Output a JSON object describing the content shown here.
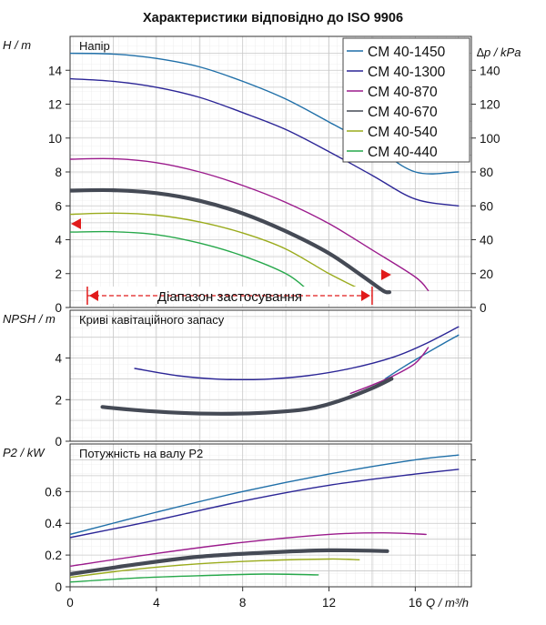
{
  "title": "Характеристики відповідно до ISO 9906",
  "legend_entries": [
    "CM 40-1450",
    "CM 40-1300",
    "CM 40-870",
    "CM 40-670",
    "CM 40-540",
    "CM 40-440"
  ],
  "chart_data": [
    {
      "type": "line",
      "panel_label": "Напір",
      "ylabel": "H / m",
      "y2label": "∆p / kPa",
      "xlim": [
        0,
        18.6
      ],
      "ylim": [
        0,
        16
      ],
      "y2lim": [
        0,
        160
      ],
      "yticks": [
        "0",
        "2",
        "4",
        "6",
        "8",
        "10",
        "12",
        "14"
      ],
      "y2ticks": [
        "0",
        "20",
        "40",
        "60",
        "80",
        "100",
        "120",
        "140"
      ],
      "grid": true,
      "legend_position": "top-right",
      "range_label": "Діапазон застосування",
      "range": [
        0.8,
        14.0
      ],
      "series": [
        {
          "name": "CM 40-1450",
          "color": "#1f6fa8",
          "width": 1.4,
          "points": [
            [
              0,
              15.0
            ],
            [
              2,
              14.96
            ],
            [
              4,
              14.7
            ],
            [
              6,
              14.2
            ],
            [
              8,
              13.35
            ],
            [
              10,
              12.3
            ],
            [
              12,
              10.95
            ],
            [
              14,
              9.55
            ],
            [
              16,
              8.0
            ],
            [
              18,
              8.0
            ]
          ]
        },
        {
          "name": "CM 40-1300",
          "color": "#2b2596",
          "width": 1.4,
          "points": [
            [
              0,
              13.5
            ],
            [
              2,
              13.35
            ],
            [
              4,
              13.0
            ],
            [
              6,
              12.4
            ],
            [
              8,
              11.5
            ],
            [
              10,
              10.5
            ],
            [
              12,
              9.2
            ],
            [
              14,
              7.8
            ],
            [
              16,
              6.4
            ],
            [
              18,
              6.0
            ]
          ]
        },
        {
          "name": "CM 40-870",
          "color": "#9b1b8c",
          "width": 1.4,
          "points": [
            [
              0,
              8.75
            ],
            [
              2,
              8.78
            ],
            [
              4,
              8.55
            ],
            [
              6,
              8.0
            ],
            [
              8,
              7.2
            ],
            [
              10,
              6.2
            ],
            [
              12,
              4.95
            ],
            [
              14,
              3.4
            ],
            [
              16,
              1.8
            ],
            [
              16.6,
              1.0
            ]
          ]
        },
        {
          "name": "CM 40-670",
          "color": "#454a55",
          "width": 4.2,
          "points": [
            [
              0,
              6.9
            ],
            [
              2,
              6.92
            ],
            [
              4,
              6.75
            ],
            [
              6,
              6.3
            ],
            [
              8,
              5.55
            ],
            [
              10,
              4.5
            ],
            [
              12,
              3.2
            ],
            [
              13.5,
              1.9
            ],
            [
              14.5,
              1.0
            ],
            [
              14.8,
              0.9
            ]
          ]
        },
        {
          "name": "CM 40-540",
          "color": "#9aab1c",
          "width": 1.4,
          "points": [
            [
              0,
              5.5
            ],
            [
              2,
              5.57
            ],
            [
              4,
              5.45
            ],
            [
              6,
              5.05
            ],
            [
              8,
              4.4
            ],
            [
              10,
              3.45
            ],
            [
              12,
              2.0
            ],
            [
              13.4,
              1.1
            ]
          ]
        },
        {
          "name": "CM 40-440",
          "color": "#27a84b",
          "width": 1.4,
          "points": [
            [
              0,
              4.45
            ],
            [
              2,
              4.47
            ],
            [
              4,
              4.3
            ],
            [
              6,
              3.8
            ],
            [
              8,
              3.05
            ],
            [
              10,
              2.0
            ],
            [
              11.0,
              1.05
            ]
          ]
        }
      ]
    },
    {
      "type": "line",
      "panel_label": "Криві кавітаційного запасу",
      "ylabel": "NPSH / m",
      "xlim": [
        0,
        18.6
      ],
      "ylim": [
        0,
        6.3
      ],
      "yticks": [
        "0",
        "2",
        "4"
      ],
      "grid": true,
      "series": [
        {
          "name": "CM 40-1450",
          "color": "#1f6fa8",
          "width": 1.4,
          "points": [
            [
              14.6,
              3.0
            ],
            [
              15.5,
              3.6
            ],
            [
              16.3,
              4.1
            ],
            [
              17.3,
              4.7
            ],
            [
              18.0,
              5.1
            ]
          ]
        },
        {
          "name": "CM 40-1300",
          "color": "#2b2596",
          "width": 1.4,
          "points": [
            [
              3,
              3.5
            ],
            [
              5,
              3.15
            ],
            [
              7,
              2.98
            ],
            [
              9,
              2.98
            ],
            [
              11,
              3.15
            ],
            [
              13,
              3.5
            ],
            [
              15,
              4.05
            ],
            [
              16.5,
              4.7
            ],
            [
              18,
              5.5
            ]
          ]
        },
        {
          "name": "CM 40-870",
          "color": "#9b1b8c",
          "width": 1.4,
          "points": [
            [
              13.0,
              2.3
            ],
            [
              14,
              2.7
            ],
            [
              15,
              3.15
            ],
            [
              16,
              3.75
            ],
            [
              16.6,
              4.5
            ]
          ]
        },
        {
          "name": "CM 40-670",
          "color": "#454a55",
          "width": 4.2,
          "points": [
            [
              1.5,
              1.65
            ],
            [
              3,
              1.5
            ],
            [
              5,
              1.37
            ],
            [
              7,
              1.32
            ],
            [
              9,
              1.37
            ],
            [
              11,
              1.55
            ],
            [
              12.5,
              1.95
            ],
            [
              14,
              2.55
            ],
            [
              14.9,
              3.0
            ]
          ]
        }
      ]
    },
    {
      "type": "line",
      "panel_label": "Потужність на валу P2",
      "ylabel": "P2 / kW",
      "xlabel": "Q / m³/h",
      "xlim": [
        0,
        18.6
      ],
      "ylim": [
        0,
        0.9
      ],
      "yticks": [
        "0",
        "0.2",
        "0.4",
        "0.6"
      ],
      "y2ticks": [
        "0.2",
        "0.4",
        "0.6",
        "0.8"
      ],
      "xticks": [
        "0",
        "4",
        "8",
        "12",
        "16"
      ],
      "grid": true,
      "series": [
        {
          "name": "CM 40-1450",
          "color": "#1f6fa8",
          "width": 1.4,
          "points": [
            [
              0,
              0.33
            ],
            [
              4,
              0.47
            ],
            [
              8,
              0.6
            ],
            [
              12,
              0.71
            ],
            [
              16,
              0.8
            ],
            [
              18,
              0.83
            ]
          ]
        },
        {
          "name": "CM 40-1300",
          "color": "#2b2596",
          "width": 1.4,
          "points": [
            [
              0,
              0.31
            ],
            [
              4,
              0.42
            ],
            [
              8,
              0.54
            ],
            [
              12,
              0.64
            ],
            [
              16,
              0.71
            ],
            [
              18,
              0.74
            ]
          ]
        },
        {
          "name": "CM 40-870",
          "color": "#9b1b8c",
          "width": 1.4,
          "points": [
            [
              0,
              0.13
            ],
            [
              4,
              0.21
            ],
            [
              8,
              0.28
            ],
            [
              12,
              0.33
            ],
            [
              14.5,
              0.34
            ],
            [
              16.5,
              0.33
            ]
          ]
        },
        {
          "name": "CM 40-670",
          "color": "#454a55",
          "width": 4.2,
          "points": [
            [
              0,
              0.08
            ],
            [
              3,
              0.14
            ],
            [
              6,
              0.19
            ],
            [
              9,
              0.215
            ],
            [
              12,
              0.23
            ],
            [
              14.7,
              0.225
            ]
          ]
        },
        {
          "name": "CM 40-540",
          "color": "#9aab1c",
          "width": 1.4,
          "points": [
            [
              0,
              0.06
            ],
            [
              3,
              0.11
            ],
            [
              6,
              0.145
            ],
            [
              9,
              0.165
            ],
            [
              12,
              0.175
            ],
            [
              13.4,
              0.17
            ]
          ]
        },
        {
          "name": "CM 40-440",
          "color": "#27a84b",
          "width": 1.4,
          "points": [
            [
              0,
              0.03
            ],
            [
              3,
              0.055
            ],
            [
              6,
              0.07
            ],
            [
              9,
              0.08
            ],
            [
              11.5,
              0.075
            ]
          ]
        }
      ]
    }
  ]
}
